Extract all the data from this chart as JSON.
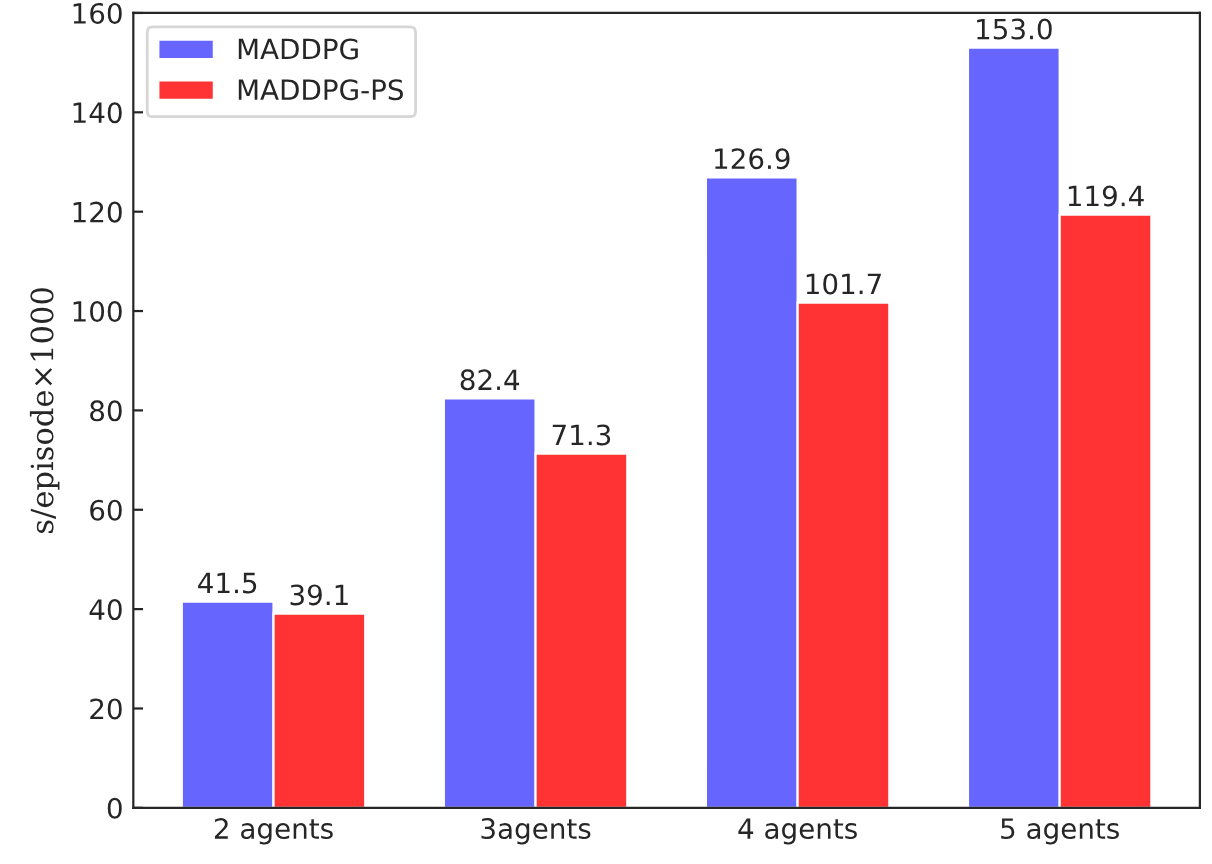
{
  "chart_data": {
    "type": "bar",
    "ylabel": "s/episode×1000",
    "categories": [
      "2 agents",
      "3agents",
      "4 agents",
      "5 agents"
    ],
    "series": [
      {
        "name": "MADDPG",
        "color": "#6666ff",
        "values": [
          41.5,
          82.4,
          126.9,
          153.0
        ],
        "value_labels": [
          "41.5",
          "82.4",
          "126.9",
          "153.0"
        ]
      },
      {
        "name": "MADDPG-PS",
        "color": "#ff3333",
        "values": [
          39.1,
          71.3,
          101.7,
          119.4
        ],
        "value_labels": [
          "39.1",
          "71.3",
          "101.7",
          "119.4"
        ]
      }
    ],
    "ylim": [
      0,
      160
    ],
    "yticks": [
      0,
      20,
      40,
      60,
      80,
      100,
      120,
      140,
      160
    ],
    "legend": "top left",
    "grid": false
  }
}
